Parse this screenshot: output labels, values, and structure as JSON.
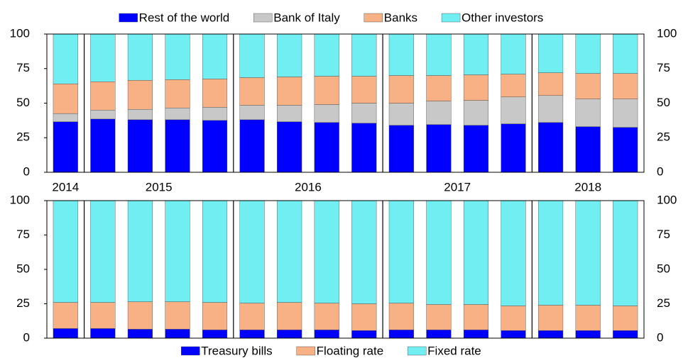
{
  "chart_data": [
    {
      "type": "stacked-bar",
      "categories": [
        "2014",
        "2015",
        null,
        null,
        null,
        "2016",
        null,
        null,
        null,
        "2017",
        null,
        null,
        null,
        "2018",
        null,
        null
      ],
      "series": [
        {
          "name": "Rest of the world",
          "color": "#0000ff",
          "values": [
            36.5,
            38.5,
            38,
            38,
            37.5,
            38,
            36.5,
            36,
            35.5,
            34,
            34.5,
            34,
            35,
            36,
            33,
            32.5
          ]
        },
        {
          "name": "Bank of Italy",
          "color": "#c8c8c8",
          "values": [
            6,
            6.5,
            7.5,
            8.5,
            9.5,
            10.5,
            12,
            13,
            14.5,
            16,
            17,
            18,
            19.5,
            19.5,
            20,
            20.5
          ]
        },
        {
          "name": "Banks",
          "color": "#f8b085",
          "values": [
            21.5,
            20.5,
            21,
            20.5,
            20.5,
            20,
            20.5,
            20.5,
            19.5,
            20,
            18.5,
            18.5,
            16.5,
            16.5,
            18.5,
            18.5
          ]
        },
        {
          "name": "Other investors",
          "color": "#70eef2",
          "values": [
            36,
            34.5,
            33.5,
            33,
            32.5,
            31.5,
            31,
            30.5,
            30.5,
            30,
            30,
            29.5,
            29,
            28,
            28.5,
            28.5
          ]
        }
      ],
      "ylim": [
        0,
        100
      ],
      "yticks": [
        0,
        25,
        50,
        75,
        100
      ],
      "legend": "top"
    },
    {
      "type": "stacked-bar",
      "categories": [
        null,
        null,
        null,
        null,
        null,
        null,
        null,
        null,
        null,
        null,
        null,
        null,
        null,
        null,
        null,
        null
      ],
      "series": [
        {
          "name": "Treasury bills",
          "color": "#0000ff",
          "values": [
            7,
            7,
            6.5,
            6.5,
            6,
            6,
            6,
            6,
            5.5,
            6,
            6,
            6,
            5.5,
            5.5,
            5.5,
            5.5
          ]
        },
        {
          "name": "Floating rate",
          "color": "#f8b085",
          "values": [
            19,
            19,
            20,
            20,
            20,
            19.5,
            20,
            19.5,
            19.5,
            19.5,
            18.5,
            18.5,
            18,
            18.5,
            18.5,
            18
          ]
        },
        {
          "name": "Fixed rate",
          "color": "#70eef2",
          "values": [
            74,
            74,
            73.5,
            73.5,
            74,
            74.5,
            74,
            74.5,
            75,
            74.5,
            75.5,
            75.5,
            76.5,
            76,
            76,
            76.5
          ]
        }
      ],
      "ylim": [
        0,
        100
      ],
      "yticks": [
        0,
        25,
        50,
        75,
        100
      ],
      "legend": "bottom"
    }
  ]
}
